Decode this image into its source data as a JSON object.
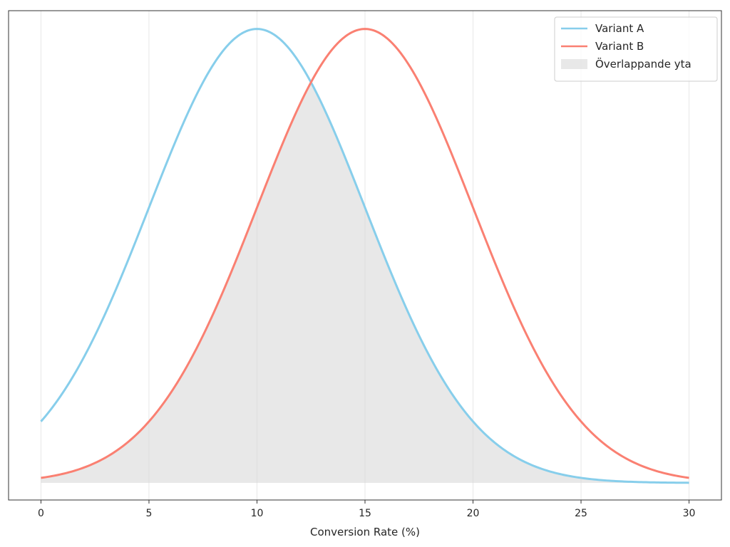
{
  "chart_data": {
    "type": "line",
    "xlabel": "Conversion Rate (%)",
    "ylabel": "",
    "xlim": [
      -1.5,
      31.5
    ],
    "ylim": [
      -0.003,
      0.083
    ],
    "xticks": [
      "0",
      "5",
      "10",
      "15",
      "20",
      "25",
      "30"
    ],
    "grid": "vertical",
    "legend": "top-right",
    "x_range": [
      0,
      30
    ],
    "series": [
      {
        "name": "Variant A",
        "color": "#87CEEB",
        "mean": 10,
        "std": 5
      },
      {
        "name": "Variant B",
        "color": "#FA8072",
        "mean": 15,
        "std": 5
      }
    ],
    "fill": {
      "name": "Överlappande yta",
      "color": "#d9d9d9",
      "opacity": 0.6
    }
  }
}
